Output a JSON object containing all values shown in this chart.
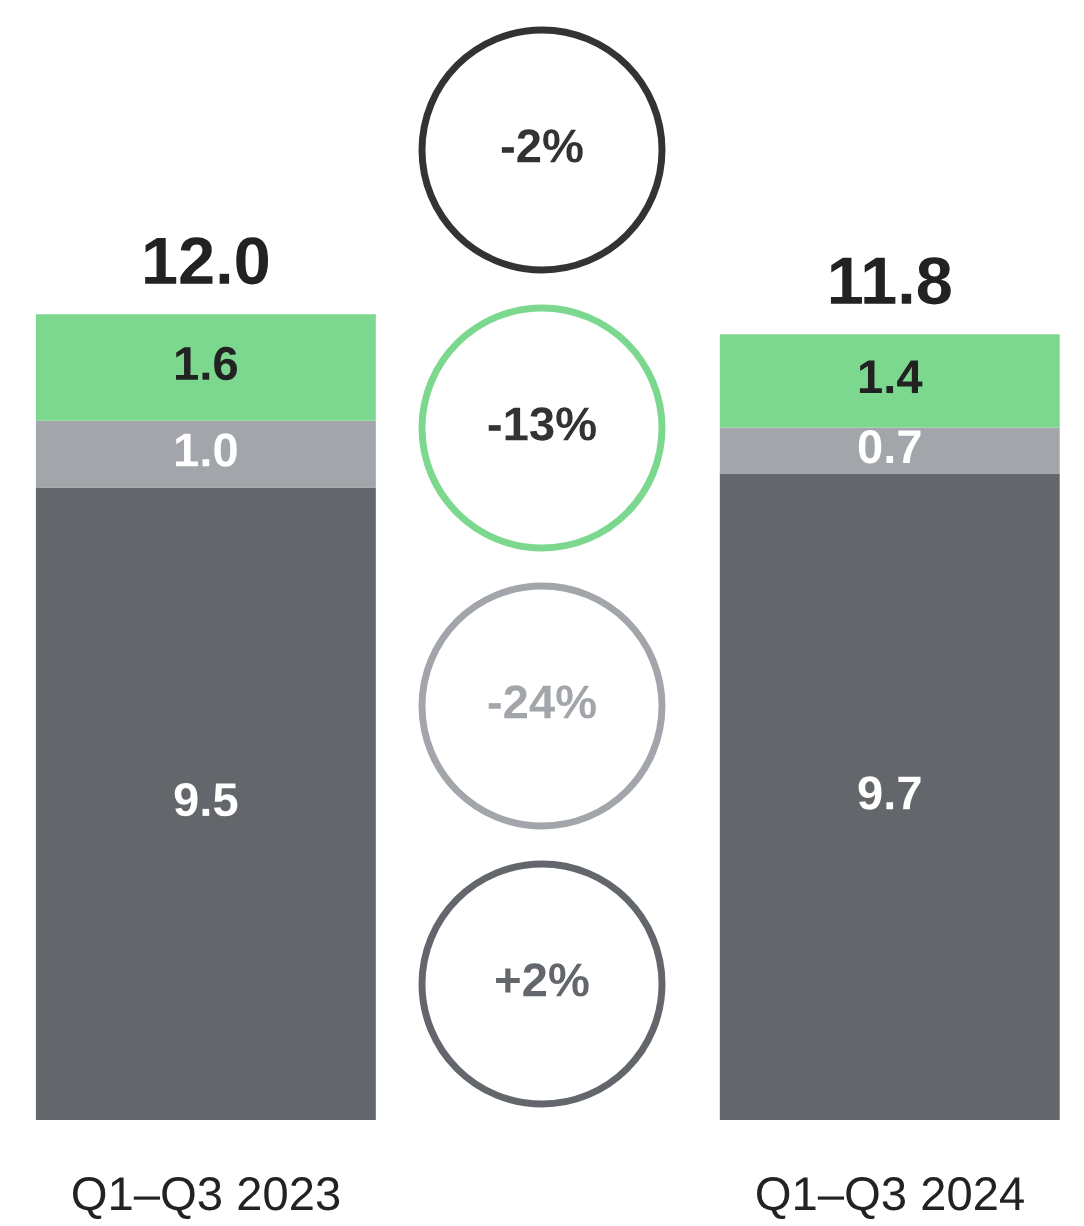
{
  "chart_data": {
    "type": "bar",
    "stacked": true,
    "categories": [
      "Q1–Q3 2023",
      "Q1–Q3 2024"
    ],
    "series": [
      {
        "color": "#63666a",
        "values": [
          9.5,
          9.7
        ],
        "value_labels": [
          "9.5",
          "9.7"
        ]
      },
      {
        "color": "#a2a5a9",
        "values": [
          1.0,
          0.7
        ],
        "value_labels": [
          "1.0",
          "0.7"
        ]
      },
      {
        "color": "#7dd88f",
        "values": [
          1.6,
          1.4
        ],
        "value_labels": [
          "1.6",
          "1.4"
        ]
      }
    ],
    "totals": [
      "12.0",
      "11.8"
    ],
    "annotations": [
      "-2%",
      "-13%",
      "-24%",
      "+2%"
    ],
    "legend": false
  }
}
